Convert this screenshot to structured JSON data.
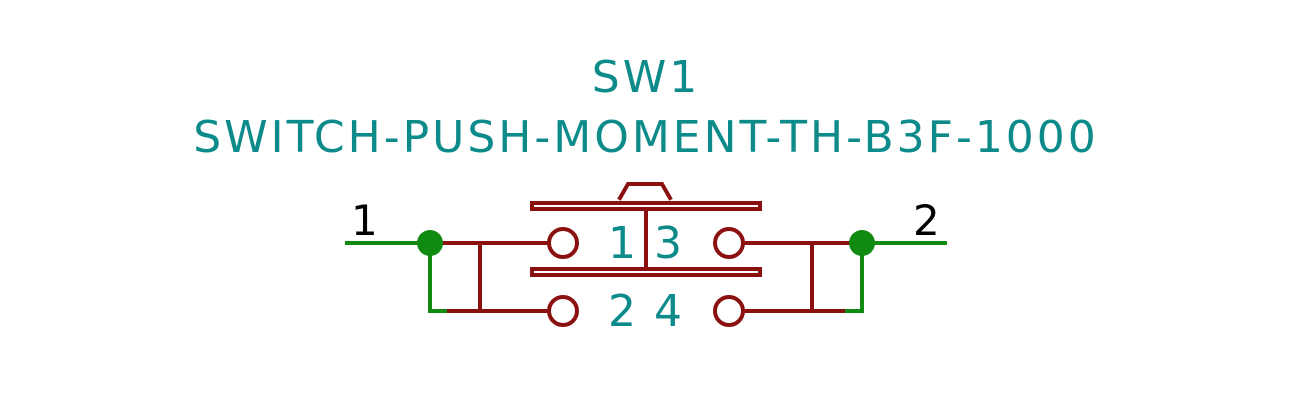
{
  "component": {
    "reference": "SW1",
    "value": "SWITCH-PUSH-MOMENT-TH-B3F-1000",
    "pin_numbers": {
      "top_left": "1",
      "top_right": "3",
      "bottom_left": "2",
      "bottom_right": "4"
    }
  },
  "nets": {
    "left": "1",
    "right": "2"
  },
  "colors": {
    "component_text": "#0d8a8a",
    "component_body": "#8b1111",
    "wire": "#118a11",
    "net_label": "#000000"
  }
}
